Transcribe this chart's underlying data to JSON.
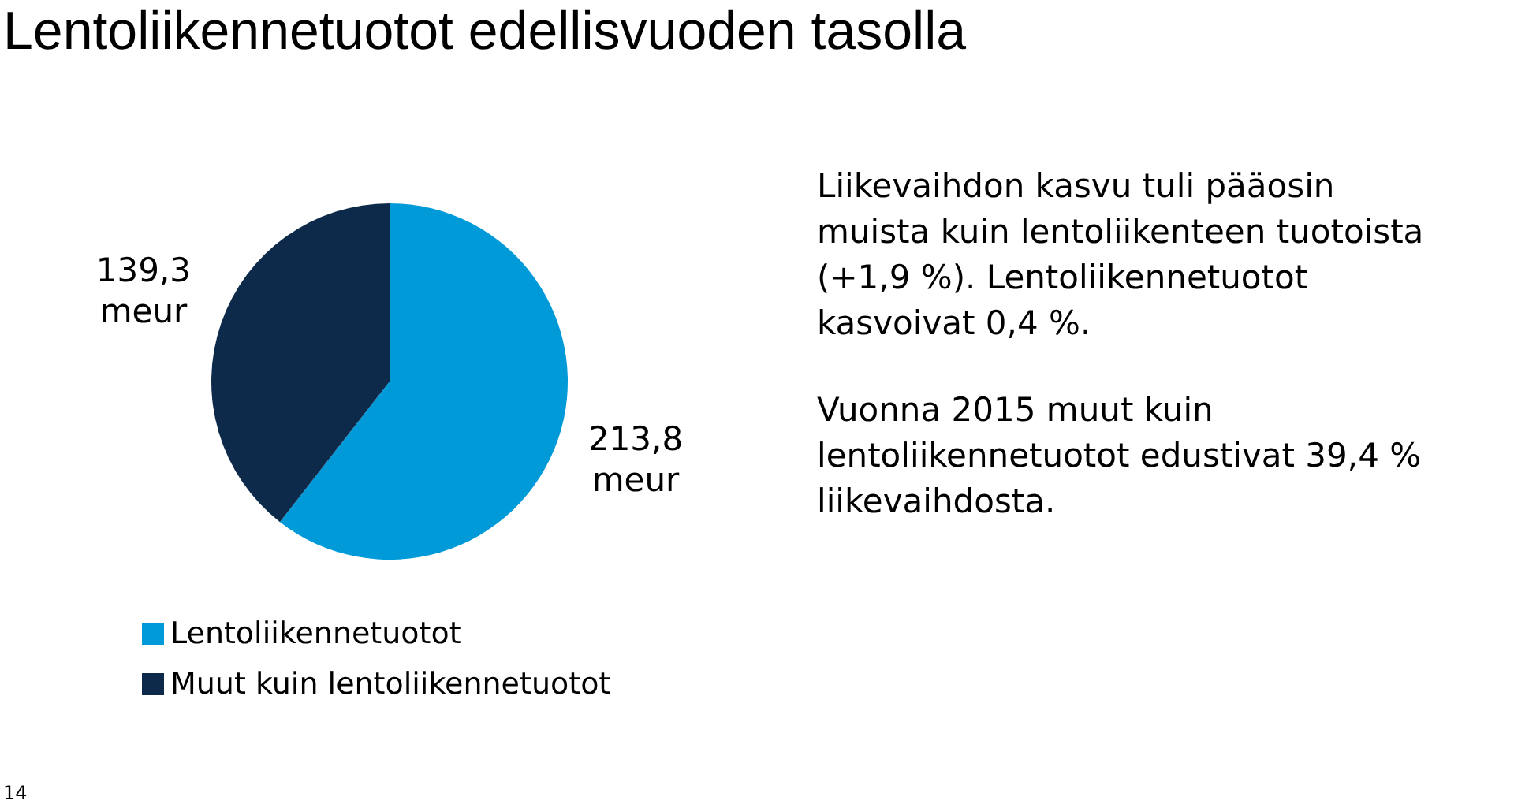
{
  "chart_data": {
    "type": "pie",
    "title": "Lentoliikennetuotot edellisvuoden tasolla",
    "categories": [
      "Lentoliikennetuotot",
      "Muut kuin lentoliikennetuotot"
    ],
    "values": [
      213.8,
      139.3
    ],
    "colors": [
      "#009ad8",
      "#0d2a4a"
    ],
    "value_labels": [
      "213,8 meur",
      "139,3 meur"
    ],
    "legend": "bottom left",
    "annotations": [
      "Liikevaihdon kasvu tuli pääosin muista kuin lentoliikenteen tuotoista (+1,9 %). Lentoliikennetuotot kasvoivat 0,4 %.",
      "Vuonna 2015 muut kuin lentoliikennetuotot edustivat 39,4 % liikevaihdosta.",
      "14"
    ]
  }
}
